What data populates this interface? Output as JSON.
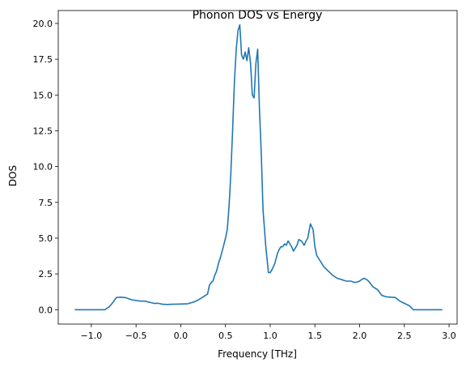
{
  "chart_data": {
    "type": "line",
    "title": "Phonon DOS vs Energy",
    "xlabel": "Frequency [THz]",
    "ylabel": "DOS",
    "xlim": [
      -1.37,
      3.09
    ],
    "ylim": [
      -1.0,
      20.9
    ],
    "xticks": [
      -1.0,
      -0.5,
      0.0,
      0.5,
      1.0,
      1.5,
      2.0,
      2.5,
      3.0
    ],
    "xtick_labels": [
      "−1.0",
      "−0.5",
      "0.0",
      "0.5",
      "1.0",
      "1.5",
      "2.0",
      "2.5",
      "3.0"
    ],
    "yticks": [
      0.0,
      2.5,
      5.0,
      7.5,
      10.0,
      12.5,
      15.0,
      17.5,
      20.0
    ],
    "ytick_labels": [
      "0.0",
      "2.5",
      "5.0",
      "7.5",
      "10.0",
      "12.5",
      "15.0",
      "17.5",
      "20.0"
    ],
    "grid": false,
    "legend": false,
    "line_color": "#1f77b4",
    "series": [
      {
        "x": [
          -1.18,
          -0.85,
          -0.8,
          -0.76,
          -0.72,
          -0.68,
          -0.62,
          -0.55,
          -0.45,
          -0.4,
          -0.35,
          -0.3,
          -0.25,
          -0.2,
          -0.15,
          -0.1,
          0.0,
          0.08,
          0.15,
          0.2,
          0.25,
          0.3,
          0.32,
          0.34,
          0.36,
          0.38,
          0.4,
          0.42,
          0.45,
          0.48,
          0.5,
          0.52,
          0.54,
          0.56,
          0.58,
          0.6,
          0.62,
          0.64,
          0.66,
          0.68,
          0.7,
          0.72,
          0.74,
          0.76,
          0.78,
          0.8,
          0.82,
          0.84,
          0.86,
          0.88,
          0.9,
          0.92,
          0.95,
          0.98,
          1.0,
          1.02,
          1.05,
          1.08,
          1.1,
          1.12,
          1.14,
          1.16,
          1.18,
          1.2,
          1.22,
          1.24,
          1.26,
          1.28,
          1.3,
          1.32,
          1.35,
          1.38,
          1.4,
          1.42,
          1.45,
          1.48,
          1.5,
          1.52,
          1.55,
          1.6,
          1.65,
          1.7,
          1.75,
          1.8,
          1.85,
          1.9,
          1.95,
          2.0,
          2.02,
          2.05,
          2.08,
          2.1,
          2.15,
          2.2,
          2.25,
          2.3,
          2.35,
          2.4,
          2.45,
          2.5,
          2.55,
          2.57,
          2.6,
          2.65,
          2.75,
          2.92
        ],
        "y": [
          0.0,
          0.0,
          0.2,
          0.5,
          0.85,
          0.88,
          0.85,
          0.7,
          0.6,
          0.6,
          0.52,
          0.45,
          0.45,
          0.38,
          0.37,
          0.38,
          0.4,
          0.42,
          0.55,
          0.7,
          0.9,
          1.1,
          1.7,
          1.9,
          2.0,
          2.4,
          2.7,
          3.2,
          3.8,
          4.5,
          5.0,
          5.6,
          7.2,
          9.5,
          12.5,
          16.0,
          18.2,
          19.5,
          19.9,
          17.8,
          17.5,
          18.0,
          17.4,
          18.3,
          17.2,
          15.0,
          14.8,
          17.2,
          18.2,
          14.0,
          11.0,
          7.0,
          4.5,
          2.6,
          2.6,
          2.8,
          3.2,
          3.9,
          4.2,
          4.4,
          4.4,
          4.6,
          4.5,
          4.8,
          4.6,
          4.4,
          4.1,
          4.3,
          4.5,
          4.9,
          4.8,
          4.5,
          4.8,
          5.0,
          6.0,
          5.6,
          4.4,
          3.8,
          3.5,
          3.0,
          2.7,
          2.4,
          2.2,
          2.1,
          2.0,
          2.0,
          1.9,
          2.0,
          2.1,
          2.2,
          2.1,
          2.0,
          1.6,
          1.4,
          1.0,
          0.9,
          0.88,
          0.85,
          0.6,
          0.45,
          0.3,
          0.2,
          0.0,
          0.0,
          0.0,
          0.0
        ]
      }
    ]
  }
}
